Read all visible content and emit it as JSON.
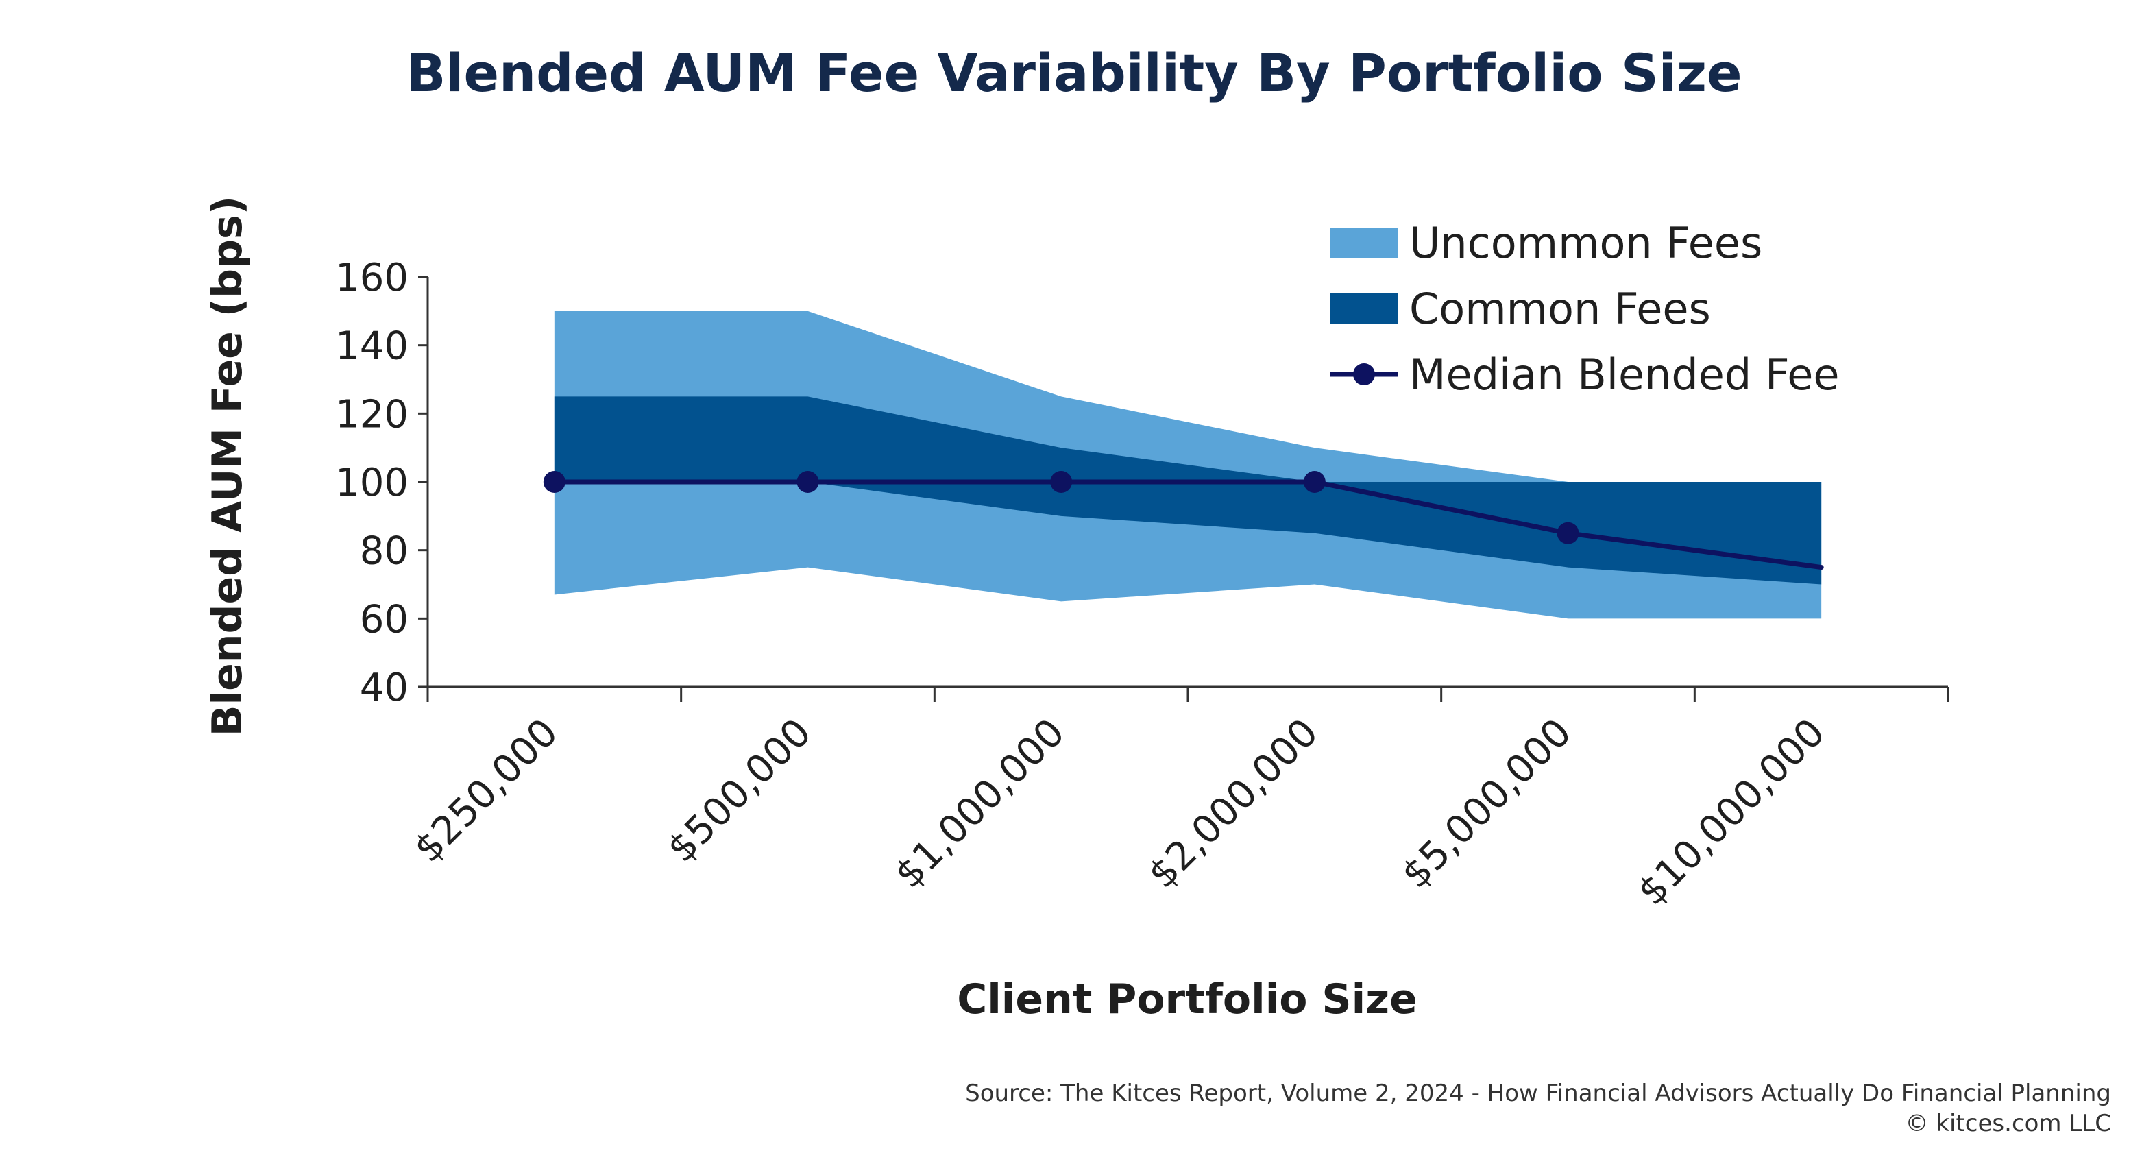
{
  "chart_data": {
    "type": "area",
    "title": "Blended AUM Fee Variability By Portfolio Size",
    "xlabel": "Client Portfolio Size",
    "ylabel": "Blended AUM Fee (bps)",
    "categories": [
      "$250,000",
      "$500,000",
      "$1,000,000",
      "$2,000,000",
      "$5,000,000",
      "$10,000,000"
    ],
    "ylim": [
      40,
      160
    ],
    "yticks": [
      40,
      60,
      80,
      100,
      120,
      140,
      160
    ],
    "grid": false,
    "legend_position": "top-right",
    "series": [
      {
        "name": "Uncommon Fees",
        "kind": "band",
        "color": "#5aa4d8",
        "upper": [
          150,
          150,
          125,
          110,
          100,
          100
        ],
        "lower": [
          67,
          75,
          65,
          70,
          60,
          60
        ]
      },
      {
        "name": "Common Fees",
        "kind": "band",
        "color": "#02528f",
        "upper": [
          125,
          125,
          110,
          100,
          100,
          100
        ],
        "lower": [
          100,
          100,
          90,
          85,
          75,
          70
        ]
      },
      {
        "name": "Median Blended Fee",
        "kind": "line",
        "color": "#0d1260",
        "values": [
          100,
          100,
          100,
          100,
          85,
          75
        ],
        "markers": [
          true,
          true,
          true,
          true,
          true,
          false
        ]
      }
    ]
  },
  "colors": {
    "title": "#14294b",
    "axis_text": "#1f1f1f",
    "axis_line": "#333333"
  },
  "footer": {
    "source": "Source: The Kitces Report, Volume 2, 2024 - How Financial Advisors Actually Do Financial Planning",
    "copyright": "© kitces.com LLC"
  }
}
